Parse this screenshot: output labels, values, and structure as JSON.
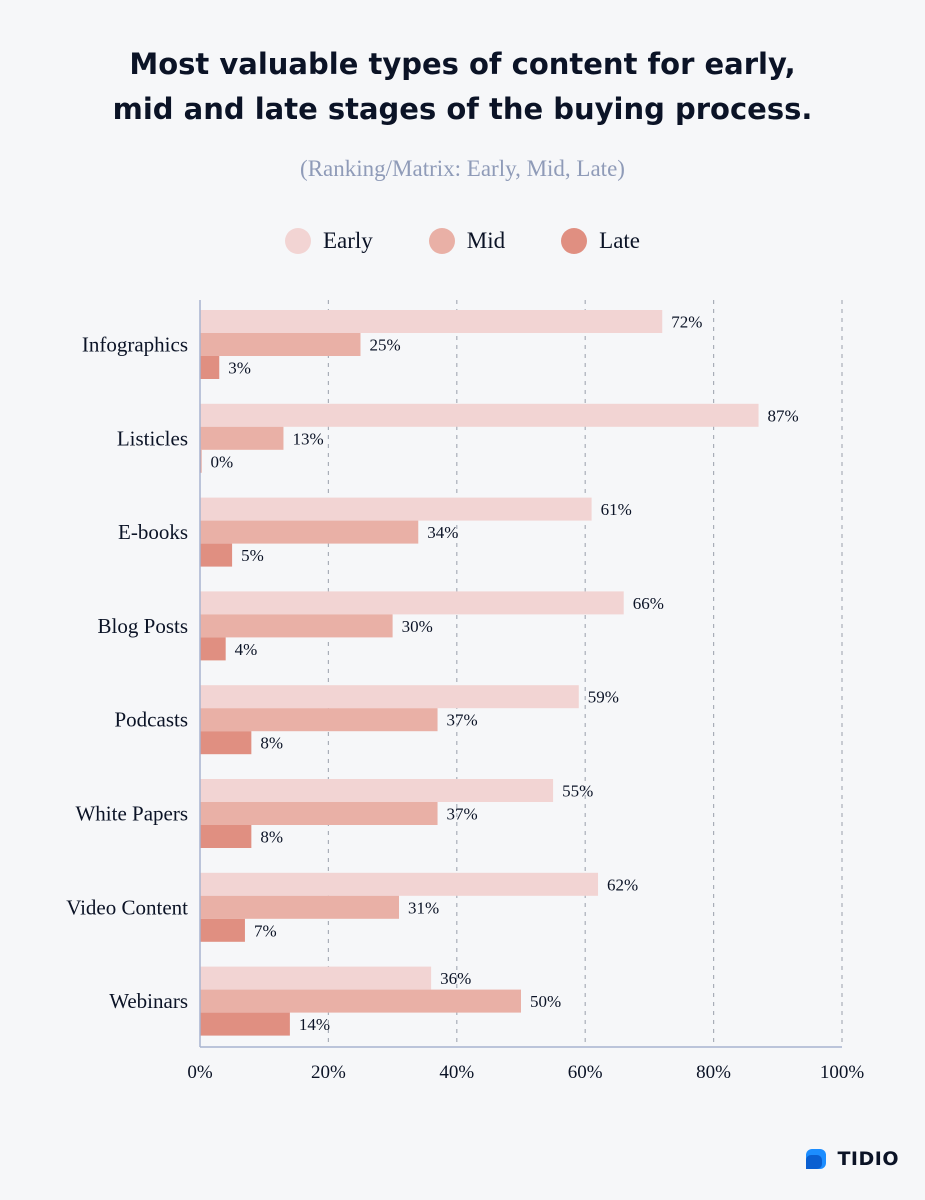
{
  "title_line1": "Most valuable types of content for early,",
  "title_line2": "mid and late stages of the buying process.",
  "subtitle": "(Ranking/Matrix: Early, Mid, Late)",
  "brand": {
    "name": "TIDIO",
    "icon": "tidio-logo-icon"
  },
  "colors": {
    "early": "#f2d4d3",
    "mid": "#e9b0a6",
    "late": "#e08f81",
    "axis": "#a7b4d0",
    "grid": "#a9aeb8",
    "text": "#0b1326"
  },
  "chart_data": {
    "type": "bar",
    "orientation": "horizontal",
    "categories": [
      "Infographics",
      "Listicles",
      "E-books",
      "Blog Posts",
      "Podcasts",
      "White Papers",
      "Video Content",
      "Webinars"
    ],
    "series": [
      {
        "name": "Early",
        "values": [
          72,
          87,
          61,
          66,
          59,
          55,
          62,
          36
        ]
      },
      {
        "name": "Mid",
        "values": [
          25,
          13,
          34,
          30,
          37,
          37,
          31,
          50
        ]
      },
      {
        "name": "Late",
        "values": [
          3,
          0,
          5,
          4,
          8,
          8,
          7,
          14
        ]
      }
    ],
    "value_suffix": "%",
    "xlim": [
      0,
      100
    ],
    "xticks": [
      "0%",
      "20%",
      "40%",
      "60%",
      "80%",
      "100%"
    ],
    "grid": true,
    "legend": "top-center"
  }
}
